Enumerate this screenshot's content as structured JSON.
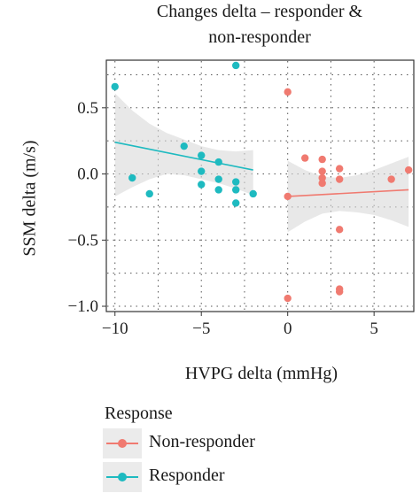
{
  "chart_data": {
    "type": "scatter",
    "title": "Changes delta – responder & non-responder",
    "title_lines": [
      "Changes delta – responder &",
      "non-responder"
    ],
    "xlabel": "HVPG delta (mmHg)",
    "ylabel": "SSM delta (m/s)",
    "xlim": [
      -10.5,
      7.3
    ],
    "ylim": [
      -1.04,
      0.86
    ],
    "xticks": [
      -10,
      -5,
      0,
      5
    ],
    "xtick_labels": [
      "−10",
      "−5",
      "0",
      "5"
    ],
    "yticks": [
      -1.0,
      -0.5,
      0.0,
      0.5
    ],
    "ytick_labels": [
      "−1.0",
      "−0.5",
      "0.0",
      "0.5"
    ],
    "grid": "dotted",
    "legend_title": "Response",
    "legend_position": "bottom",
    "series": [
      {
        "name": "Non-responder",
        "color": "#F07A70",
        "points": [
          [
            0,
            0.62
          ],
          [
            0,
            -0.17
          ],
          [
            0,
            -0.94
          ],
          [
            1,
            0.12
          ],
          [
            2,
            0.11
          ],
          [
            2,
            0.02
          ],
          [
            2,
            -0.03
          ],
          [
            2,
            -0.07
          ],
          [
            3,
            0.04
          ],
          [
            3,
            -0.04
          ],
          [
            3,
            -0.42
          ],
          [
            3,
            -0.87
          ],
          [
            3,
            -0.89
          ],
          [
            6,
            -0.04
          ],
          [
            7,
            0.03
          ]
        ],
        "fit": {
          "x": [
            0,
            7
          ],
          "y": [
            -0.17,
            -0.12
          ]
        },
        "band": {
          "x": [
            0,
            1,
            2,
            3,
            4,
            5,
            6,
            7
          ],
          "upper": [
            0.1,
            0.03,
            -0.02,
            -0.03,
            -0.01,
            0.03,
            0.08,
            0.13
          ],
          "lower": [
            -0.44,
            -0.36,
            -0.3,
            -0.28,
            -0.29,
            -0.31,
            -0.35,
            -0.4
          ]
        }
      },
      {
        "name": "Responder",
        "color": "#1EBAC0",
        "points": [
          [
            -10,
            0.66
          ],
          [
            -9,
            -0.03
          ],
          [
            -8,
            -0.15
          ],
          [
            -6,
            0.21
          ],
          [
            -5,
            0.14
          ],
          [
            -5,
            0.02
          ],
          [
            -5,
            -0.08
          ],
          [
            -4,
            0.09
          ],
          [
            -4,
            -0.04
          ],
          [
            -4,
            -0.12
          ],
          [
            -3,
            0.82
          ],
          [
            -3,
            -0.06
          ],
          [
            -3,
            -0.12
          ],
          [
            -3,
            -0.22
          ],
          [
            -2,
            -0.15
          ]
        ],
        "fit": {
          "x": [
            -10,
            -2
          ],
          "y": [
            0.24,
            0.03
          ]
        },
        "band": {
          "x": [
            -10,
            -9,
            -8,
            -7,
            -6,
            -5,
            -4,
            -3,
            -2
          ],
          "upper": [
            0.61,
            0.48,
            0.38,
            0.31,
            0.26,
            0.21,
            0.18,
            0.17,
            0.18
          ],
          "lower": [
            -0.17,
            -0.1,
            -0.04,
            0.0,
            -0.01,
            -0.04,
            -0.07,
            -0.11,
            -0.16
          ]
        }
      }
    ]
  }
}
